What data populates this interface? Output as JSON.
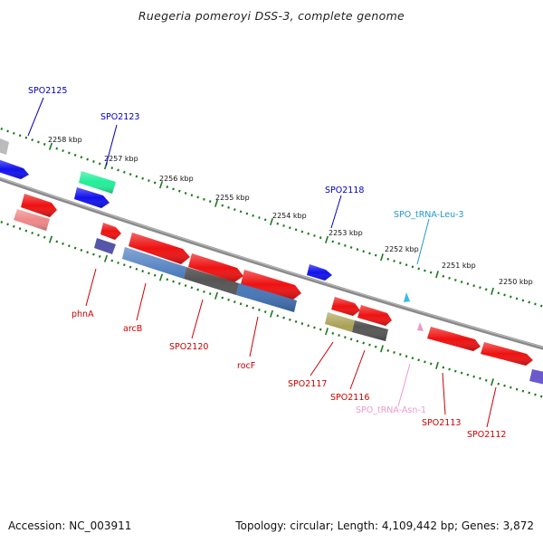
{
  "title": "Ruegeria pomeroyi DSS-3, complete genome",
  "footer": {
    "accession": "Accession: NC_003911",
    "info": "Topology: circular; Length: 4,109,442 bp; Genes: 3,872"
  },
  "colors": {
    "backbone": "#8a8a8a",
    "ruler_dots": "#1a7a1a",
    "gene_red": "#ee1111",
    "gene_blue": "#1111ee",
    "gene_teal": "#22ee99",
    "gene_gray": "#bbbbbb",
    "gene_pink": "#ee8888",
    "gene_purple": "#5555aa",
    "trna_cyan": "#33bbee",
    "trna_pink": "#ee99cc",
    "cds_steel": "#4477bb",
    "cds_dark": "#555555",
    "cds_olive": "#aaa055",
    "label_blue": "#0000bb",
    "label_red": "#cc0000",
    "label_cyan": "#2299cc",
    "label_pink": "#ee99cc"
  },
  "ruler_labels": [
    "2258 kbp",
    "2257 kbp",
    "2256 kbp",
    "2255 kbp",
    "2254 kbp",
    "2253 kbp",
    "2252 kbp",
    "2251 kbp",
    "2250 kbp"
  ],
  "gene_labels": [
    {
      "text": "SPO2125",
      "color": "blue"
    },
    {
      "text": "SPO2123",
      "color": "blue"
    },
    {
      "text": "SPO2118",
      "color": "blue"
    },
    {
      "text": "SPO_tRNA-Leu-3",
      "color": "cyan"
    },
    {
      "text": "phnA",
      "color": "red"
    },
    {
      "text": "arcB",
      "color": "red"
    },
    {
      "text": "SPO2120",
      "color": "red"
    },
    {
      "text": "rocF",
      "color": "red"
    },
    {
      "text": "SPO2117",
      "color": "red"
    },
    {
      "text": "SPO2116",
      "color": "red"
    },
    {
      "text": "SPO_tRNA-Asn-1",
      "color": "pink"
    },
    {
      "text": "SPO2113",
      "color": "red"
    },
    {
      "text": "SPO2112",
      "color": "red"
    }
  ]
}
